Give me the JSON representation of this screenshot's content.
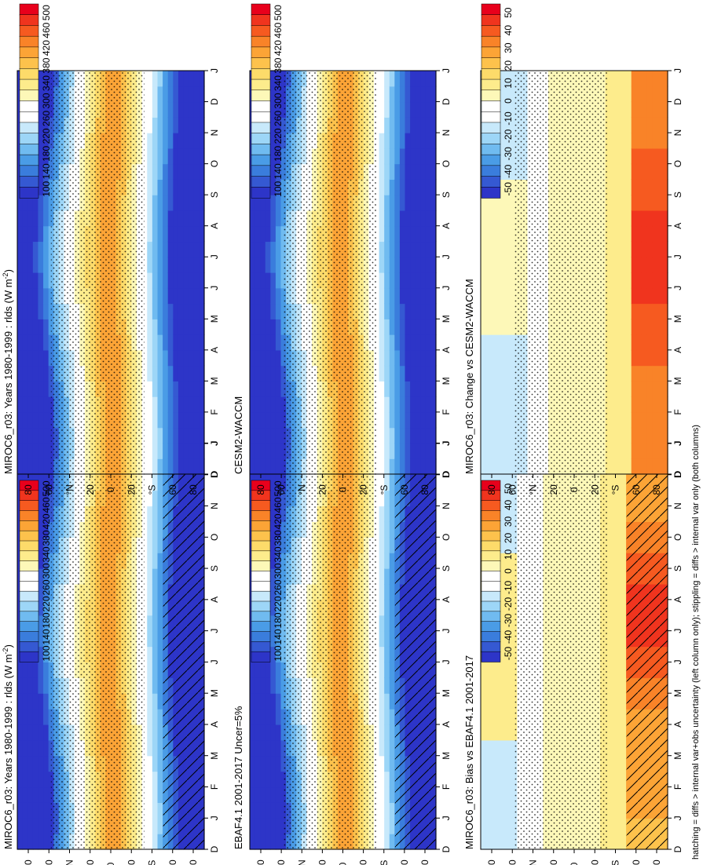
{
  "footnote": "hatching = diffs > internal var+obs uncertainty (left column only); stippling = diffs > internal var only (both columns)",
  "colors": {
    "absolute_scale": [
      "#e8001c",
      "#f0341e",
      "#f65a20",
      "#f98328",
      "#fca436",
      "#fdc24c",
      "#fddb6a",
      "#fdec8c",
      "#fdf8b8",
      "#ffffff",
      "#ffffff",
      "#c8e9fb",
      "#9dd6f7",
      "#70bbf0",
      "#4a9ce6",
      "#3a7ddc",
      "#3559d2",
      "#2d35c8"
    ],
    "difference_scale": [
      "#e8001c",
      "#f0341e",
      "#f65a20",
      "#f98328",
      "#fca436",
      "#fdc24c",
      "#fddb6a",
      "#fdec8c",
      "#fdf8b8",
      "#ffffff",
      "#ffffff",
      "#c8e9fb",
      "#9dd6f7",
      "#70bbf0",
      "#4a9ce6",
      "#3a7ddc",
      "#3559d2",
      "#2d35c8"
    ]
  },
  "chart_data": [
    {
      "type": "heatmap",
      "id": "left-top",
      "title": "MIROC6_r03: Years 1980-1999 : rlds (W m",
      "title_sup": "-2",
      "title_tail": ")",
      "x_ticks": [
        "D",
        "J",
        "F",
        "M",
        "A",
        "M",
        "J",
        "J",
        "A",
        "S",
        "O",
        "N",
        "D",
        "J"
      ],
      "y_ticks": [
        "80",
        "60",
        "°N",
        "20",
        "0",
        "20",
        "°S",
        "60",
        "80"
      ],
      "colorbar_labels": [
        "500",
        "460",
        "420",
        "380",
        "340",
        "300",
        "260",
        "220",
        "180",
        "140",
        "100"
      ],
      "scale": "absolute",
      "hatching": true,
      "stippling": true
    },
    {
      "type": "heatmap",
      "id": "left-middle",
      "title": "EBAF4.1 2001-2017 Uncer=5%",
      "x_ticks": [
        "D",
        "J",
        "F",
        "M",
        "A",
        "M",
        "J",
        "J",
        "A",
        "S",
        "O",
        "N",
        "D",
        "J"
      ],
      "y_ticks": [
        "80",
        "60",
        "°N",
        "20",
        "0",
        "20",
        "°S",
        "60",
        "80"
      ],
      "colorbar_labels": [
        "500",
        "460",
        "420",
        "380",
        "340",
        "300",
        "260",
        "220",
        "180",
        "140",
        "100"
      ],
      "scale": "absolute",
      "hatching": true,
      "stippling": true
    },
    {
      "type": "heatmap",
      "id": "left-bottom",
      "title": "MIROC6_r03: Bias vs EBAF4.1 2001-2017",
      "x_ticks": [
        "D",
        "J",
        "F",
        "M",
        "A",
        "M",
        "J",
        "J",
        "A",
        "S",
        "O",
        "N",
        "D",
        "J"
      ],
      "y_ticks": [
        "80",
        "60",
        "°N",
        "20",
        "0",
        "20",
        "°S",
        "60",
        "80"
      ],
      "colorbar_labels": [
        "50",
        "40",
        "30",
        "20",
        "10",
        "0",
        "-10",
        "-20",
        "-30",
        "-40",
        "-50"
      ],
      "scale": "difference",
      "hatching": true,
      "stippling": true
    },
    {
      "type": "heatmap",
      "id": "right-top",
      "title": "MIROC6_r03: Years 1980-1999 : rlds (W m",
      "title_sup": "-2",
      "title_tail": ")",
      "x_ticks": [
        "D",
        "J",
        "F",
        "M",
        "A",
        "M",
        "J",
        "J",
        "A",
        "S",
        "O",
        "N",
        "D",
        "J"
      ],
      "y_ticks": [
        "80",
        "60",
        "°N",
        "20",
        "0",
        "20",
        "°S",
        "60",
        "80"
      ],
      "colorbar_labels": [
        "500",
        "460",
        "420",
        "380",
        "340",
        "300",
        "260",
        "220",
        "180",
        "140",
        "100"
      ],
      "scale": "absolute",
      "hatching": false,
      "stippling": true
    },
    {
      "type": "heatmap",
      "id": "right-middle",
      "title": "CESM2-WACCM",
      "x_ticks": [
        "D",
        "J",
        "F",
        "M",
        "A",
        "M",
        "J",
        "J",
        "A",
        "S",
        "O",
        "N",
        "D",
        "J"
      ],
      "y_ticks": [
        "80",
        "60",
        "°N",
        "20",
        "0",
        "20",
        "°S",
        "60",
        "80"
      ],
      "colorbar_labels": [
        "500",
        "460",
        "420",
        "380",
        "340",
        "300",
        "260",
        "220",
        "180",
        "140",
        "100"
      ],
      "scale": "absolute",
      "hatching": false,
      "stippling": true
    },
    {
      "type": "heatmap",
      "id": "right-bottom",
      "title": "MIROC6_r03: Change vs CESM2-WACCM",
      "x_ticks": [
        "D",
        "J",
        "F",
        "M",
        "A",
        "M",
        "J",
        "J",
        "A",
        "S",
        "O",
        "N",
        "D",
        "J"
      ],
      "y_ticks": [
        "80",
        "60",
        "°N",
        "20",
        "0",
        "20",
        "°S",
        "60",
        "80"
      ],
      "colorbar_labels": [
        "50",
        "40",
        "30",
        "20",
        "10",
        "0",
        "-10",
        "-20",
        "-30",
        "-40",
        "-50"
      ],
      "scale": "difference",
      "hatching": false,
      "stippling": true
    }
  ]
}
